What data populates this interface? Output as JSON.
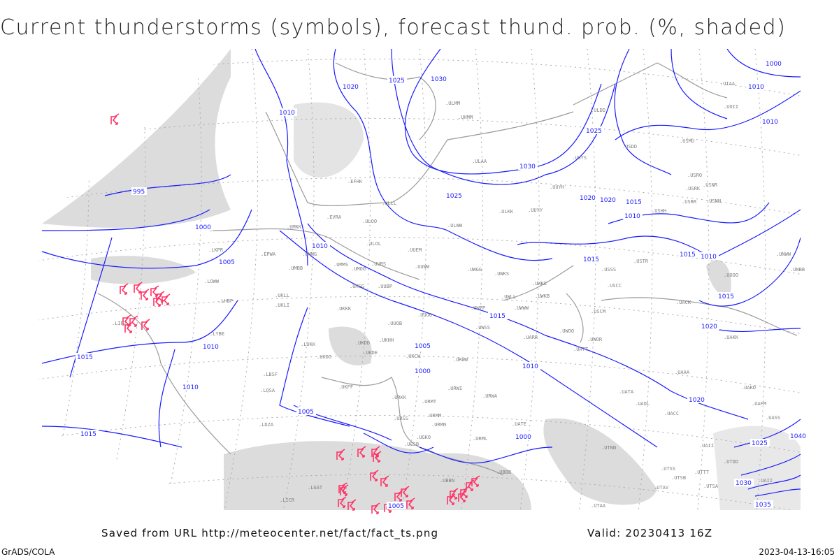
{
  "title": "Current thunderstorms (symbols), forecast thund. prob. (%, shaded)",
  "footer": {
    "saved_from": "Saved from URL http://meteocenter.net/fact/fact_ts.png",
    "valid": "Valid: 20230413 16Z",
    "software": "GrADS/COLA",
    "generated": "2023-04-13-16:05"
  },
  "colors": {
    "isobar": "#1a1aff",
    "storm_symbol": "#ff3366",
    "shading": "#d8d8d8",
    "coastline": "#999999",
    "station": "#777777"
  },
  "isobar_labels": [
    "1020",
    "1025",
    "1030",
    "1010",
    "995",
    "1000",
    "1005",
    "1010",
    "1015",
    "1010",
    "1005",
    "1010",
    "1005",
    "1000",
    "1010",
    "1015",
    "1020",
    "1015",
    "1010",
    "1015",
    "1020",
    "1025",
    "1030",
    "1000",
    "1010",
    "1010",
    "1015",
    "1025",
    "1020",
    "1020",
    "1025",
    "1030",
    "1040",
    "1035",
    "1005",
    "1015",
    "1015",
    "1000",
    "1010"
  ],
  "stations": [
    "ULMM",
    "ULAA",
    "UUYS",
    "UUYH",
    "UUYY",
    "ULKK",
    "ULWW",
    "ULOO",
    "ULLL",
    "EFHK",
    "EVRA",
    "UMKK",
    "EPWA",
    "UMMG",
    "UMBB",
    "UMMS",
    "UMOO",
    "UUBS",
    "ULOL",
    "UUEM",
    "UUWW",
    "UWGG",
    "UWKS",
    "UMGG",
    "UUBP",
    "UWKE",
    "UWKB",
    "UWLL",
    "UWWW",
    "UWPP",
    "UUOO",
    "UKKK",
    "UUOB",
    "UWSS",
    "UKLL",
    "UKLI",
    "LHBP",
    "LYBE",
    "LUKK",
    "UKHH",
    "UKDD",
    "UKDE",
    "UKCW",
    "UKOO",
    "URWW",
    "URWI",
    "UKFF",
    "URKK",
    "URMT",
    "URWA",
    "URMM",
    "URMN",
    "URML",
    "URSS",
    "UGSB",
    "UGKO",
    "UBBN",
    "UBBB",
    "UATE",
    "UATT",
    "UARR",
    "UWOO",
    "UWOR",
    "UAAA",
    "UATA",
    "UAOL",
    "UACC",
    "UACK",
    "UAKK",
    "UAKD",
    "UASS",
    "UAII",
    "UNBB",
    "UNWW",
    "USSS",
    "USCC",
    "USCM",
    "USTR",
    "USHH",
    "USRR",
    "USNN",
    "USRK",
    "USNR",
    "USRO",
    "USMU",
    "USDD",
    "ULDD",
    "UOOO",
    "UOII",
    "UIAA",
    "LBSF",
    "LQSA",
    "LDZA",
    "LOWW",
    "LKPR",
    "LIPZ",
    "LICR",
    "LGAT",
    "UTSS",
    "UTTT",
    "UTAV",
    "UTSB",
    "UTAA",
    "UTNN",
    "UTSA",
    "UTDD",
    "UAFM",
    "UAII",
    "UHMM"
  ]
}
